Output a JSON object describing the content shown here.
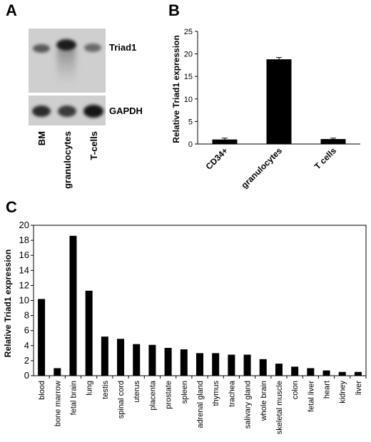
{
  "panels": {
    "a": "A",
    "b": "B",
    "c": "C"
  },
  "blot": {
    "lane_labels": [
      "BM",
      "granulocytes",
      "T-cells"
    ],
    "band_labels": [
      "Triad1",
      "GAPDH"
    ]
  },
  "chart_data": [
    {
      "type": "bar",
      "panel": "B",
      "title": "",
      "xlabel": "",
      "ylabel": "Relative Triad1 expression",
      "categories": [
        "CD34+",
        "granulocytes",
        "T cells"
      ],
      "values": [
        1.0,
        18.8,
        1.1
      ],
      "errors": [
        0.3,
        0.4,
        0.2
      ],
      "ylim": [
        0,
        25
      ],
      "yticks": [
        0,
        5,
        10,
        15,
        20,
        25
      ],
      "grid": false,
      "color": "#000000"
    },
    {
      "type": "bar",
      "panel": "C",
      "title": "",
      "xlabel": "",
      "ylabel": "Relative Triad1 expression",
      "categories": [
        "blood",
        "bone marrow",
        "fetal brain",
        "lung",
        "testis",
        "spinal cord",
        "uterus",
        "placenta",
        "prostate",
        "spleen",
        "adrenal gland",
        "thymus",
        "trachea",
        "salivary gland",
        "whole brain",
        "skeletal muscle",
        "colon",
        "fetal liver",
        "heart",
        "kidney",
        "liver"
      ],
      "values": [
        10.2,
        1.0,
        18.6,
        11.3,
        5.2,
        4.9,
        4.2,
        4.1,
        3.7,
        3.5,
        3.0,
        3.0,
        2.8,
        2.8,
        2.2,
        1.6,
        1.2,
        1.0,
        0.7,
        0.5,
        0.5
      ],
      "ylim": [
        0,
        20
      ],
      "yticks": [
        0,
        2,
        4,
        6,
        8,
        10,
        12,
        14,
        16,
        18,
        20
      ],
      "grid": false,
      "color": "#000000"
    }
  ]
}
